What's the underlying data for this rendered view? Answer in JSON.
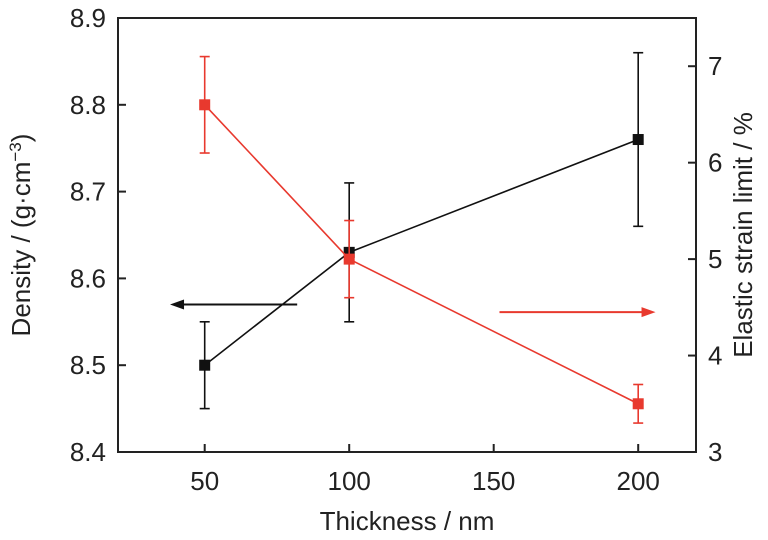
{
  "chart_data": {
    "type": "line",
    "title": "",
    "xlabel": "Thickness / nm",
    "ylabel_left_text": "Density / (g·cm",
    "ylabel_left_sup": "−3",
    "ylabel_left_close": ")",
    "ylabel_right": "Elastic strain limit / %",
    "xlim": [
      20,
      220
    ],
    "ylim_left": [
      8.4,
      8.9
    ],
    "ylim_right": [
      3,
      7.5
    ],
    "x_ticks": [
      50,
      100,
      150,
      200
    ],
    "x_tick_labels": [
      "50",
      "100",
      "150",
      "200"
    ],
    "y_left_ticks": [
      8.4,
      8.5,
      8.6,
      8.7,
      8.8,
      8.9
    ],
    "y_left_tick_labels": [
      "8.4",
      "8.5",
      "8.6",
      "8.7",
      "8.8",
      "8.9"
    ],
    "y_right_ticks": [
      3,
      4,
      5,
      6,
      7
    ],
    "y_right_tick_labels": [
      "3",
      "4",
      "5",
      "6",
      "7"
    ],
    "grid": false,
    "series": [
      {
        "axis": "left",
        "color": "#111111",
        "x": [
          50,
          100,
          200
        ],
        "y": [
          8.5,
          8.63,
          8.76
        ],
        "err": [
          0.05,
          0.08,
          0.1
        ]
      },
      {
        "axis": "right",
        "color": "#e8392e",
        "x": [
          50,
          100,
          200
        ],
        "y": [
          6.6,
          5.0,
          3.5
        ],
        "err": [
          0.5,
          0.4,
          0.2
        ]
      }
    ],
    "annotations": [
      {
        "type": "arrow",
        "direction": "left",
        "axis": "left",
        "color": "#111111",
        "x_from": 82,
        "x_to": 38,
        "y": 8.57
      },
      {
        "type": "arrow",
        "direction": "right",
        "axis": "right",
        "color": "#e8392e",
        "x_from": 152,
        "x_to": 206,
        "y": 4.45
      }
    ]
  }
}
